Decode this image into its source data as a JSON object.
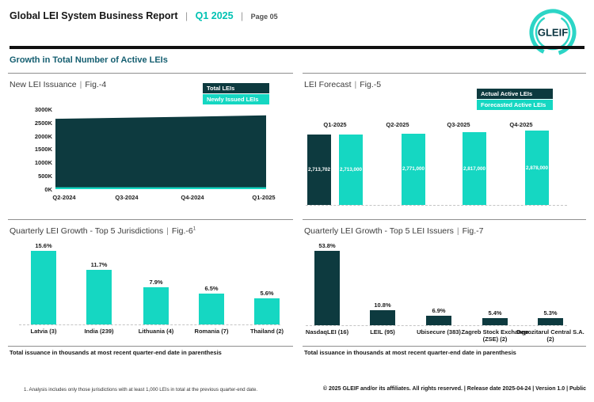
{
  "page": {
    "title": "Global LEI System Business Report",
    "sep": "|",
    "period": "Q1 2025",
    "page_label": "Page 05",
    "section_title": "Growth in Total Number of Active LEIs",
    "logo_text": "GLEIF"
  },
  "colors": {
    "dark_teal": "#0d3a3f",
    "teal": "#15d7c2",
    "accent_text": "#00c2b3",
    "section_title": "#145e70"
  },
  "panels": {
    "fig4": {
      "title": "New LEI Issuance",
      "fig": "Fig.-4",
      "legend": [
        "Total LEIs",
        "Newly Issued LEIs"
      ]
    },
    "fig5": {
      "title": "LEI Forecast",
      "fig": "Fig.-5",
      "legend": [
        "Actual Active LEIs",
        "Forecasted Active LEIs"
      ]
    },
    "fig6": {
      "title": "Quarterly LEI Growth - Top 5 Jurisdictions",
      "fig": "Fig.-6",
      "fig_superscript": "1",
      "footnote": "Total issuance in thousands at most recent quarter-end date in parenthesis"
    },
    "fig7": {
      "title": "Quarterly LEI Growth - Top 5 LEI Issuers",
      "fig": "Fig.-7",
      "footnote": "Total issuance in thousands at most recent quarter-end date in parenthesis"
    }
  },
  "footer": {
    "note": "1. Analysis includes only those jurisdictions with at least 1,000 LEIs in total at the previous quarter-end date.",
    "copyright": "© 2025 GLEIF and/or its affiliates. All rights reserved. | Release date 2025-04-24 | Version 1.0 | Public"
  },
  "chart_data": [
    {
      "id": "fig4",
      "type": "area",
      "title": "New LEI Issuance | Fig.-4",
      "x": [
        "Q2-2024",
        "Q3-2024",
        "Q4-2024",
        "Q1-2025"
      ],
      "series": [
        {
          "name": "Total LEIs",
          "values": [
            2640000,
            2680000,
            2720000,
            2770000
          ],
          "estimated": true
        },
        {
          "name": "Newly Issued LEIs",
          "values": [
            70000,
            70000,
            70000,
            70000
          ],
          "estimated": true
        }
      ],
      "ylim": [
        0,
        3000000
      ],
      "y_tick_labels": [
        "3000K",
        "2500K",
        "2000K",
        "1500K",
        "1000K",
        "500K",
        "0K"
      ],
      "legend_position": "top-right",
      "grid": false
    },
    {
      "id": "fig5",
      "type": "bar",
      "title": "LEI Forecast | Fig.-5",
      "categories": [
        "Q1-2025",
        "Q2-2025",
        "Q3-2025",
        "Q4-2025"
      ],
      "series": [
        {
          "name": "Actual Active LEIs",
          "values": [
            2713702,
            null,
            null,
            null
          ],
          "labels": [
            "2,713,702",
            null,
            null,
            null
          ]
        },
        {
          "name": "Forecasted Active LEIs",
          "values": [
            2713000,
            2771000,
            2817000,
            2878000
          ],
          "labels": [
            "2,713,000",
            "2,771,000",
            "2,817,000",
            "2,878,000"
          ]
        }
      ],
      "legend_position": "top-right"
    },
    {
      "id": "fig6",
      "type": "bar",
      "title": "Quarterly LEI Growth - Top 5 Jurisdictions | Fig.-6¹",
      "categories": [
        "Latvia (3)",
        "India (239)",
        "Lithuania (4)",
        "Romania (7)",
        "Thailand (2)"
      ],
      "values": [
        15.6,
        11.7,
        7.9,
        6.5,
        5.6
      ],
      "value_labels": [
        "15.6%",
        "11.7%",
        "7.9%",
        "6.5%",
        "5.6%"
      ],
      "unit": "%"
    },
    {
      "id": "fig7",
      "type": "bar",
      "title": "Quarterly LEI Growth - Top 5 LEI Issuers | Fig.-7",
      "categories": [
        "NasdaqLEI (16)",
        "LEIL (95)",
        "Ubisecure (383)",
        "Zagreb Stock Exchange (ZSE) (2)",
        "Depozitarul Central S.A. (2)"
      ],
      "values": [
        53.8,
        10.8,
        6.9,
        5.4,
        5.3
      ],
      "value_labels": [
        "53.8%",
        "10.8%",
        "6.9%",
        "5.4%",
        "5.3%"
      ],
      "unit": "%"
    }
  ]
}
